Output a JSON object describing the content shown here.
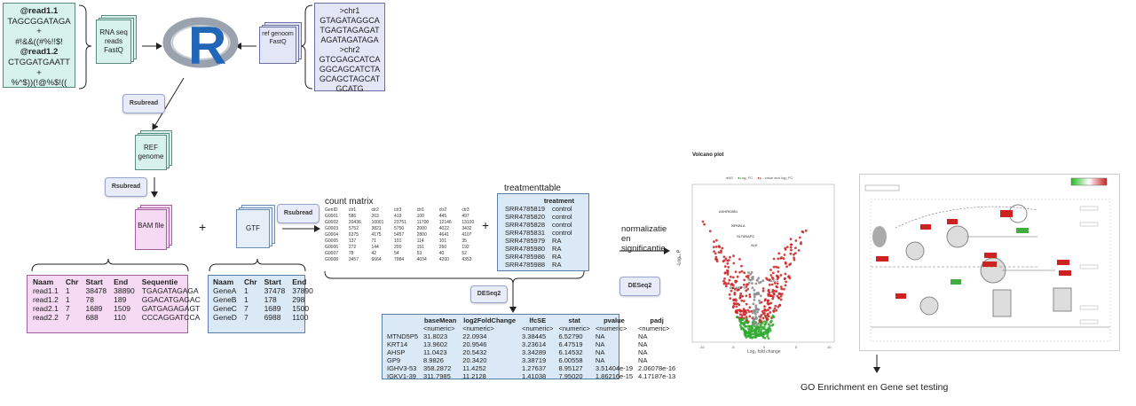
{
  "reads": {
    "lines": [
      {
        "text": "@read1.1",
        "bold": true
      },
      {
        "text": "TAGCGGATAGA",
        "bold": false
      },
      {
        "text": "+",
        "bold": false
      },
      {
        "text": "#!&&((#%!!$!",
        "bold": false
      },
      {
        "text": "@read1.2",
        "bold": true
      },
      {
        "text": "CTGGATGAATT",
        "bold": false
      },
      {
        "text": "+",
        "bold": false
      },
      {
        "text": "%^$))(!@%$!((",
        "bold": false
      }
    ]
  },
  "fastq_doc": {
    "label": "RNA seq reads FastQ"
  },
  "ref_doc": {
    "label": "ref genoom FastQ"
  },
  "genome": {
    "lines": [
      ">chr1",
      "GTAGATAGGCA",
      "TGAGTAGAGAT",
      "AGATAGATAGA",
      ">chr2",
      "GTCGAGCATCA",
      "GGCAGCATCTA",
      "GCAGCTAGCAT",
      "GCATG"
    ]
  },
  "r_logo": {
    "letter": "R"
  },
  "rsubread_tags": [
    "Rsubread",
    "Rsubread",
    "Rsubread"
  ],
  "ref_genome_doc": {
    "label": "REF genome"
  },
  "bam_doc": {
    "label": "BAM file"
  },
  "gtf_doc": {
    "label": "GTF"
  },
  "plus_signs": [
    "+",
    "+"
  ],
  "bam_table": {
    "headers": [
      "Naam",
      "Chr",
      "Start",
      "End",
      "Sequentie"
    ],
    "rows": [
      [
        "read1.1",
        "1",
        "38478",
        "38890",
        "TGAGATAGAGA"
      ],
      [
        "read1.2",
        "1",
        "78",
        "189",
        "GGACATGAGAC"
      ],
      [
        "read2.1",
        "7",
        "1689",
        "1509",
        "GATGAGAGAGT"
      ],
      [
        "read2.2",
        "7",
        "688",
        "110",
        "CCCAGGATCCA"
      ]
    ]
  },
  "gtf_table": {
    "headers": [
      "Naam",
      "Chr",
      "Start",
      "End"
    ],
    "rows": [
      [
        "GeneA",
        "1",
        "37478",
        "37890"
      ],
      [
        "GeneB",
        "1",
        "178",
        "298"
      ],
      [
        "GeneC",
        "7",
        "1689",
        "1500"
      ],
      [
        "GeneD",
        "7",
        "6988",
        "1100"
      ]
    ]
  },
  "count_matrix": {
    "title": "count matrix",
    "headers": [
      "GenID",
      "ctr1",
      "ctr2",
      "ctr3",
      "ctr1",
      "ctr2",
      "ctr3"
    ],
    "rows": [
      [
        "G0001",
        "586",
        "263",
        "419",
        "100",
        "445",
        "497"
      ],
      [
        "G0002",
        "20436",
        "10001",
        "23751",
        "11700",
        "12146",
        "13100"
      ],
      [
        "G0003",
        "5752",
        "3821",
        "5750",
        "2000",
        "4022",
        "3432"
      ],
      [
        "G0004",
        "6375",
        "4175",
        "5457",
        "2800",
        "4641",
        "4107"
      ],
      [
        "G0005",
        "137",
        "71",
        "101",
        "114",
        "101",
        "35"
      ],
      [
        "G0006",
        "272",
        "144",
        "200",
        "151",
        "260",
        "192"
      ],
      [
        "G0007",
        "78",
        "42",
        "54",
        "53",
        "40",
        "52"
      ],
      [
        "G0008",
        "3457",
        "6664",
        "7984",
        "4034",
        "4200",
        "4353"
      ]
    ]
  },
  "treatment_table": {
    "title": "treatmenttable",
    "header": "treatment",
    "rows": [
      [
        "SRR4785819",
        "control"
      ],
      [
        "SRR4785820",
        "control"
      ],
      [
        "SRR4785828",
        "control"
      ],
      [
        "SRR4785831",
        "control"
      ],
      [
        "SRR4785979",
        "RA"
      ],
      [
        "SRR4785980",
        "RA"
      ],
      [
        "SRR4785986",
        "RA"
      ],
      [
        "SRR4785988",
        "RA"
      ]
    ]
  },
  "deseq_tags": [
    "DESeq2",
    "DESeq2"
  ],
  "normalization_text": [
    "normalizatie",
    "en",
    "significantie"
  ],
  "results_table": {
    "headers": [
      "",
      "baseMean",
      "log2FoldChange",
      "lfcSE",
      "stat",
      "pvalue",
      "padj"
    ],
    "types": [
      "",
      "<numeric>",
      "<numeric>",
      "<numeric>",
      "<numeric>",
      "<numeric>",
      "<numeric>"
    ],
    "rows": [
      [
        "MTND5P5",
        "31.8023",
        "22.0934",
        "3.38445",
        "6.52790",
        "NA",
        "NA"
      ],
      [
        "KRT14",
        "13.9602",
        "20.9546",
        "3.23614",
        "6.47519",
        "NA",
        "NA"
      ],
      [
        "AHSP",
        "11.0423",
        "20.5432",
        "3.34289",
        "6.14532",
        "NA",
        "NA"
      ],
      [
        "GP9",
        "8.9826",
        "20.3420",
        "3.38719",
        "6.00558",
        "NA",
        "NA"
      ],
      [
        "IGHV3-53",
        "358.2872",
        "11.4252",
        "1.27637",
        "8.95127",
        "3.51404e-19",
        "2.06078e-16"
      ],
      [
        "IGKV1-39",
        "311.7985",
        "11.2128",
        "1.41038",
        "7.95020",
        "1.86216e-15",
        "4.17187e-13"
      ]
    ]
  },
  "volcano": {
    "title": "Volcano plot",
    "ylabel": "-Log₁₀ P",
    "xlabel": "Log₂ fold change",
    "labels": [
      "ASHRI0851",
      "NFKB1A",
      "SLT6RAP2",
      "ALK",
      "NOC1",
      "INSMDP3"
    ],
    "x_ticks": [
      "-10",
      "-5",
      "0",
      "5",
      "10"
    ],
    "legend": [
      "NS",
      "Log₂ FC",
      "p - value and log₂ FC"
    ]
  },
  "go_text": "GO Enrichment en Gene set testing",
  "colors": {
    "teal": "#d6f2ea",
    "lav": "#e3e6f7",
    "pink": "#f6d9f3",
    "blue": "#dbe9f6",
    "r_blue": "#2266b8",
    "r_gray": "#9aa2ad"
  }
}
